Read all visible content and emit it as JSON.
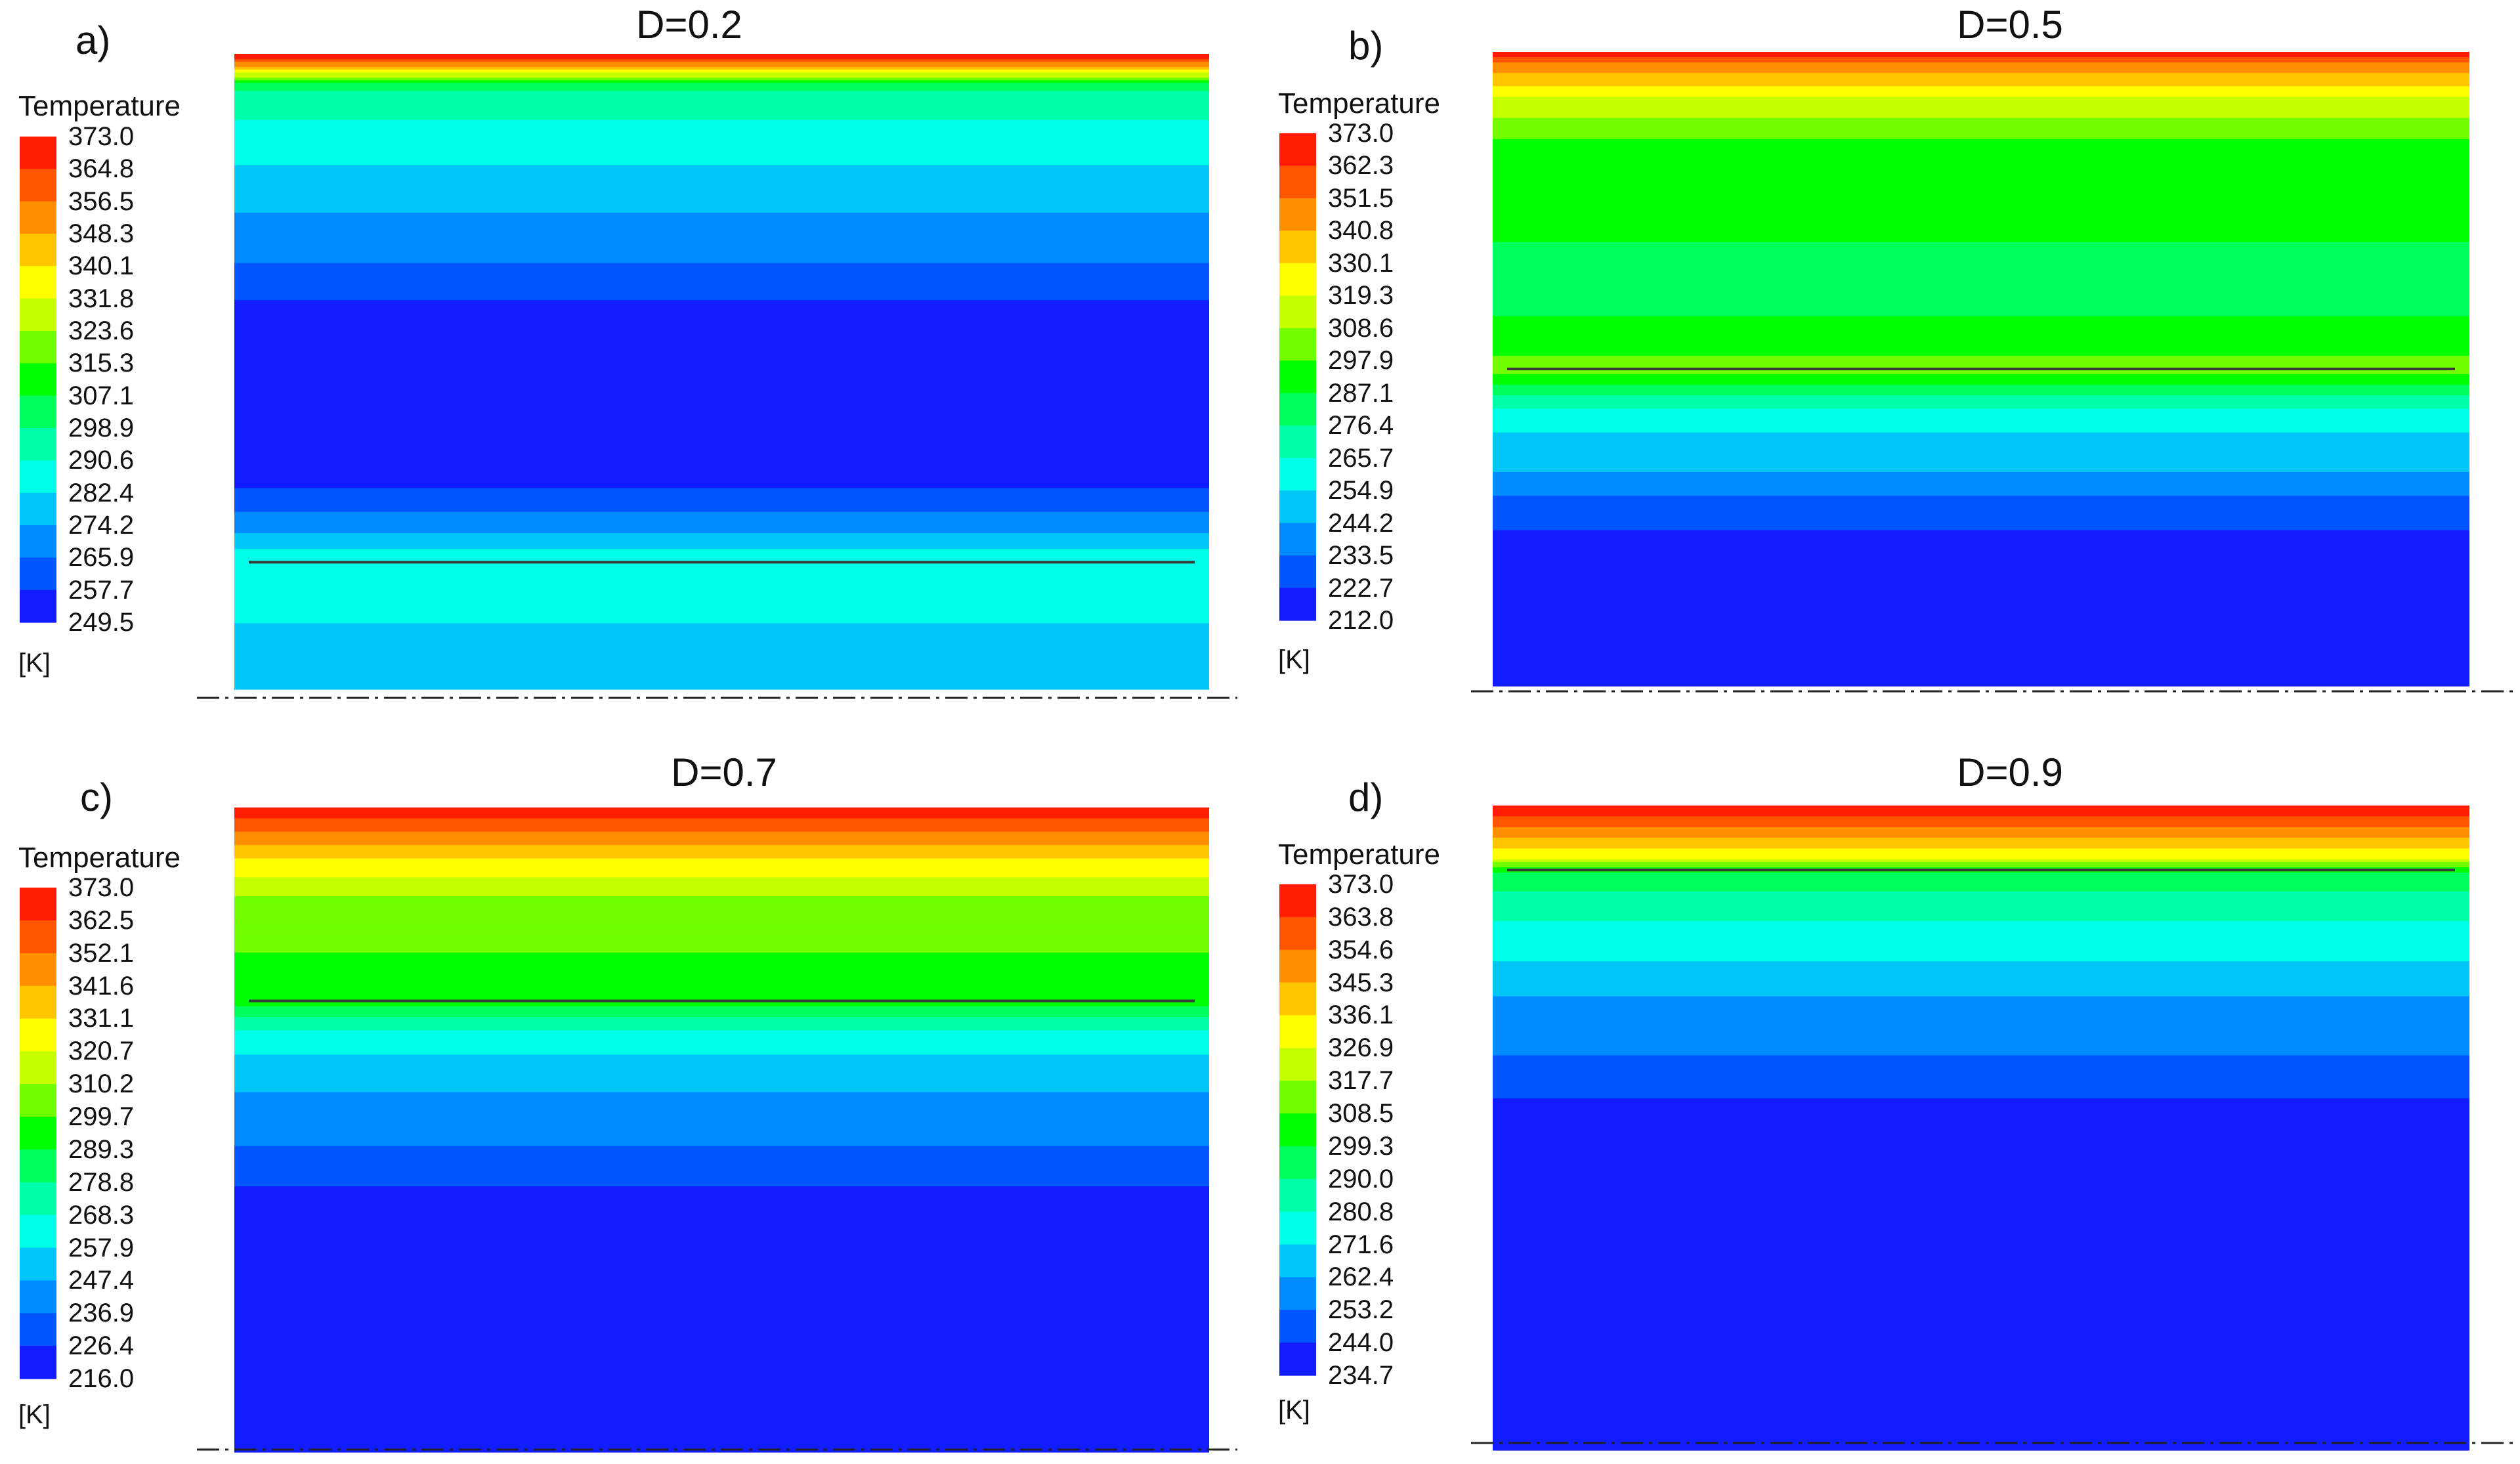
{
  "chart_data": [
    {
      "type": "heatmap",
      "panel_label": "a)",
      "title": "D=0.2",
      "legend_title": "Temperature",
      "unit": "[K]",
      "range": [
        249.5,
        373.0
      ],
      "ticks": [
        "373.0",
        "364.8",
        "356.5",
        "348.3",
        "340.1",
        "331.8",
        "323.6",
        "315.3",
        "307.1",
        "298.9",
        "290.6",
        "282.4",
        "274.2",
        "265.9",
        "257.7",
        "249.5"
      ],
      "interface_position": 0.8,
      "profile": [
        [
          0.0,
          373.0
        ],
        [
          0.02,
          350.0
        ],
        [
          0.05,
          300.0
        ],
        [
          0.12,
          288.0
        ],
        [
          0.22,
          278.0
        ],
        [
          0.3,
          268.0
        ],
        [
          0.38,
          262.0
        ],
        [
          0.4,
          250.5
        ],
        [
          0.65,
          250.5
        ],
        [
          0.7,
          262.0
        ],
        [
          0.74,
          270.0
        ],
        [
          0.77,
          278.0
        ],
        [
          0.8,
          290.0
        ],
        [
          0.84,
          287.0
        ],
        [
          0.9,
          282.0
        ],
        [
          1.0,
          279.0
        ]
      ]
    },
    {
      "type": "heatmap",
      "panel_label": "b)",
      "title": "D=0.5",
      "legend_title": "Temperature",
      "unit": "[K]",
      "range": [
        212.0,
        373.0
      ],
      "ticks": [
        "373.0",
        "362.3",
        "351.5",
        "340.8",
        "330.1",
        "319.3",
        "308.6",
        "297.9",
        "287.1",
        "276.4",
        "265.7",
        "254.9",
        "244.2",
        "233.5",
        "222.7",
        "212.0"
      ],
      "interface_position": 0.5,
      "profile": [
        [
          0.0,
          373.0
        ],
        [
          0.02,
          350.0
        ],
        [
          0.07,
          320.0
        ],
        [
          0.13,
          300.0
        ],
        [
          0.17,
          290.0
        ],
        [
          0.4,
          285.0
        ],
        [
          0.47,
          295.0
        ],
        [
          0.5,
          305.0
        ],
        [
          0.55,
          270.0
        ],
        [
          0.6,
          255.0
        ],
        [
          0.66,
          245.0
        ],
        [
          0.7,
          233.0
        ],
        [
          0.75,
          225.0
        ],
        [
          0.78,
          213.0
        ],
        [
          1.0,
          213.0
        ]
      ]
    },
    {
      "type": "heatmap",
      "panel_label": "c)",
      "title": "D=0.7",
      "legend_title": "Temperature",
      "unit": "[K]",
      "range": [
        216.0,
        373.0
      ],
      "ticks": [
        "373.0",
        "362.5",
        "352.1",
        "341.6",
        "331.1",
        "320.7",
        "310.2",
        "299.7",
        "289.3",
        "278.8",
        "268.3",
        "257.9",
        "247.4",
        "236.9",
        "226.4",
        "216.0"
      ],
      "interface_position": 0.3,
      "profile": [
        [
          0.0,
          373.0
        ],
        [
          0.03,
          355.0
        ],
        [
          0.08,
          330.0
        ],
        [
          0.14,
          310.0
        ],
        [
          0.22,
          300.0
        ],
        [
          0.3,
          295.0
        ],
        [
          0.35,
          265.0
        ],
        [
          0.42,
          250.0
        ],
        [
          0.5,
          240.0
        ],
        [
          0.56,
          232.0
        ],
        [
          0.63,
          217.0
        ],
        [
          1.0,
          216.5
        ]
      ]
    },
    {
      "type": "heatmap",
      "panel_label": "d)",
      "title": "D=0.9",
      "legend_title": "Temperature",
      "unit": "[K]",
      "range": [
        234.7,
        373.0
      ],
      "ticks": [
        "373.0",
        "363.8",
        "354.6",
        "345.3",
        "336.1",
        "326.9",
        "317.7",
        "308.5",
        "299.3",
        "290.0",
        "280.8",
        "271.6",
        "262.4",
        "253.2",
        "244.0",
        "234.7"
      ],
      "interface_position": 0.1,
      "profile": [
        [
          0.0,
          373.0
        ],
        [
          0.04,
          350.0
        ],
        [
          0.08,
          330.0
        ],
        [
          0.1,
          300.0
        ],
        [
          0.15,
          285.0
        ],
        [
          0.22,
          275.0
        ],
        [
          0.3,
          262.0
        ],
        [
          0.4,
          252.0
        ],
        [
          0.48,
          240.0
        ],
        [
          0.58,
          236.0
        ],
        [
          1.0,
          235.0
        ]
      ]
    }
  ],
  "colors": {
    "colormap": [
      "#1a00ff",
      "#0055ff",
      "#00a8ff",
      "#00ffe8",
      "#00ff8c",
      "#00ff00",
      "#aaff00",
      "#ffff00",
      "#ffaa00",
      "#ff5500",
      "#ff0000"
    ],
    "interface_line": "#3a3a3a",
    "axis_line": "#222222"
  }
}
